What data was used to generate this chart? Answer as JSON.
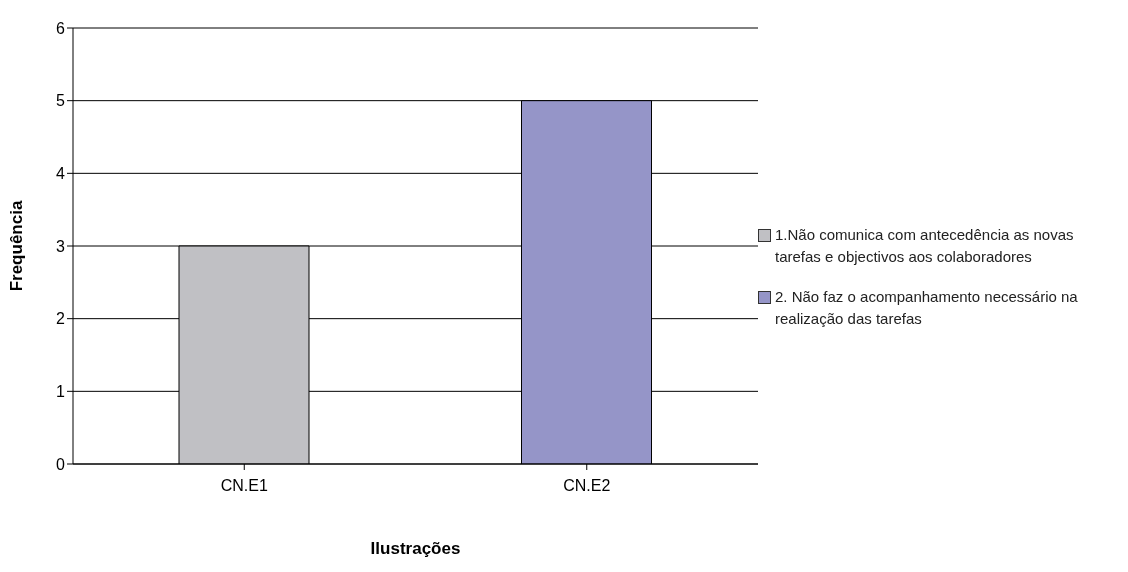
{
  "chart_data": {
    "type": "bar",
    "xlabel": "Ilustrações",
    "ylabel": "Frequência",
    "categories": [
      "CN.E1",
      "CN.E2"
    ],
    "series": [
      {
        "name": "1.Não comunica com antecedência as novas tarefas  e objectivos aos colaboradores",
        "color": "#c0c0c4",
        "values": [
          3,
          null
        ]
      },
      {
        "name": "2. Não faz o acompanhamento necessário na realização das tarefas",
        "color": "#9595c8",
        "values": [
          null,
          5
        ]
      }
    ],
    "ylim": [
      0,
      6
    ],
    "yticks": [
      0,
      1,
      2,
      3,
      4,
      5,
      6
    ],
    "grid": "y",
    "legend": "right"
  }
}
